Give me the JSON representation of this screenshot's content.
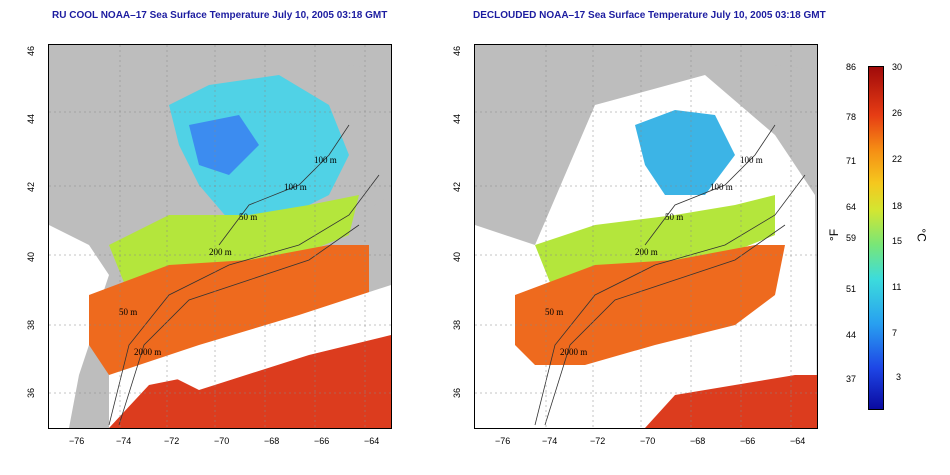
{
  "left_panel": {
    "title": "RU COOL NOAA–17 Sea Surface Temperature July 10, 2005 03:18 GMT",
    "contour_labels": [
      "100 m",
      "100 m",
      "50 m",
      "200 m",
      "50 m",
      "2000 m"
    ]
  },
  "right_panel": {
    "title": "DECLOUDED NOAA–17 Sea Surface Temperature July 10, 2005 03:18 GMT",
    "contour_labels": [
      "100 m",
      "100 m",
      "50 m",
      "200 m",
      "50 m",
      "2000 m"
    ]
  },
  "axes": {
    "lon_ticks": [
      "−76",
      "−74",
      "−72",
      "−70",
      "−68",
      "−66",
      "−64"
    ],
    "lat_ticks": [
      "46",
      "44",
      "42",
      "40",
      "38",
      "36"
    ]
  },
  "colorbar": {
    "fahrenheit_ticks": [
      "86",
      "78",
      "71",
      "64",
      "59",
      "51",
      "44",
      "37"
    ],
    "celsius_ticks": [
      "30",
      "26",
      "22",
      "18",
      "15",
      "11",
      "7",
      "3"
    ],
    "fahrenheit_unit": "°F",
    "celsius_unit": "°C"
  }
}
